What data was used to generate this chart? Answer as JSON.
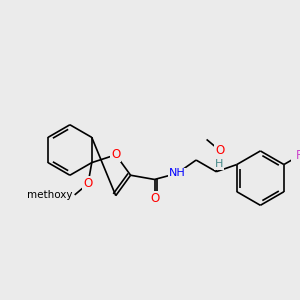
{
  "background_color": "#ebebeb",
  "bond_color": "#000000",
  "atom_colors": {
    "O": "#ff0000",
    "N": "#0000ff",
    "F": "#cc44cc",
    "H": "#448888",
    "C": "#000000"
  },
  "font_size": 8,
  "bond_width": 1.2
}
